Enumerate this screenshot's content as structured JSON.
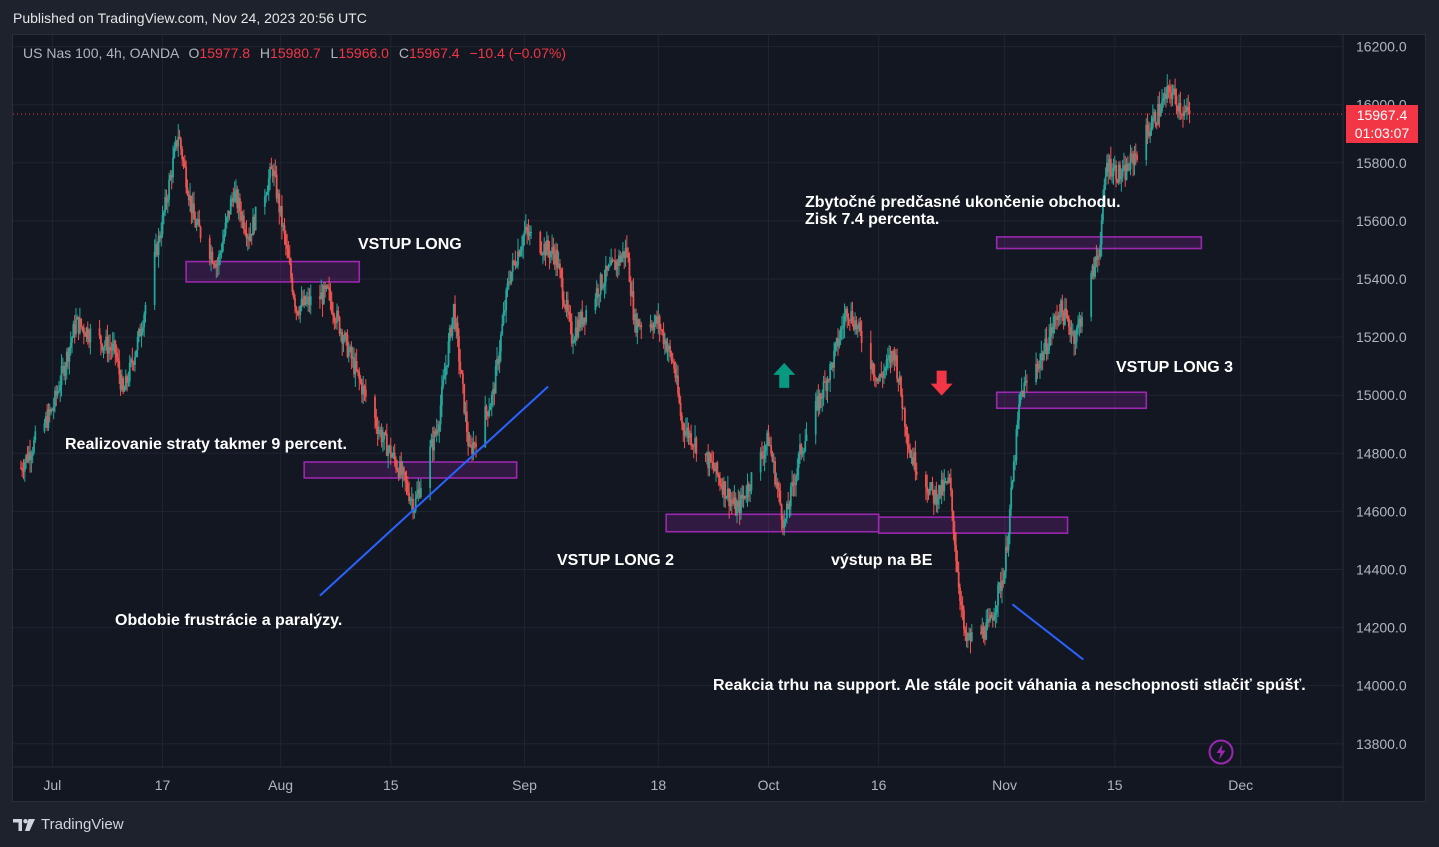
{
  "published": "Published on TradingView.com, Nov 24, 2023 20:56 UTC",
  "legend": {
    "symbol": "US Nas 100, 4h, OANDA",
    "o_label": "O",
    "o": "15977.8",
    "h_label": "H",
    "h": "15980.7",
    "l_label": "L",
    "l": "15966.0",
    "c_label": "C",
    "c": "15967.4",
    "change": "−10.4 (−0.07%)"
  },
  "price_tag": {
    "price": "15967.4",
    "countdown": "01:03:07"
  },
  "footer": {
    "brand": "TradingView"
  },
  "colors": {
    "up": "#26a69a",
    "down": "#ef5350",
    "zone": "#9c27b0",
    "line": "#2962ff",
    "price": "#f23645"
  },
  "annotations": {
    "vstup_long": "VSTUP LONG",
    "vstup_long_2": "VSTUP LONG 2",
    "vstup_long_3": "VSTUP LONG 3",
    "vystup_be": "výstup na BE",
    "strata": "Realizovanie straty takmer 9 percent.",
    "frustracia": "Obdobie frustrácie a paralýzy.",
    "zbytocne_1": "Zbytočné predčasné ukončenie obchodu.",
    "zbytocne_2": "Zisk 7.4 percenta.",
    "reakcia": "Reakcia trhu na support. Ale stále pocit váhania a neschopnosti stlačiť spúšť."
  },
  "chart_data": {
    "type": "candlestick",
    "symbol": "US Nas 100",
    "timeframe": "4h",
    "y_ticks": [
      13800,
      14000,
      14200,
      14400,
      14600,
      14800,
      15000,
      15200,
      15400,
      15600,
      15800,
      16000,
      16200
    ],
    "y_tick_labels": [
      "13800.0",
      "14000.0",
      "14200.0",
      "14400.0",
      "14600.0",
      "14800.0",
      "15000.0",
      "15200.0",
      "15400.0",
      "15600.0",
      "15800.0",
      "16000.0",
      "16200.0"
    ],
    "x_ticks": [
      "Jul",
      "17",
      "Aug",
      "15",
      "Sep",
      "18",
      "Oct",
      "16",
      "Nov",
      "15",
      "Dec"
    ],
    "x_tick_dates": [
      "2023-07-03",
      "2023-07-17",
      "2023-08-01",
      "2023-08-15",
      "2023-09-01",
      "2023-09-18",
      "2023-10-02",
      "2023-10-16",
      "2023-11-01",
      "2023-11-15",
      "2023-12-01"
    ],
    "ylim": [
      13720,
      16240
    ],
    "last_price": 15967.4,
    "price_path": [
      [
        "2023-06-29",
        14750
      ],
      [
        "2023-07-03",
        14950
      ],
      [
        "2023-07-06",
        15250
      ],
      [
        "2023-07-11",
        15150
      ],
      [
        "2023-07-12",
        15000
      ],
      [
        "2023-07-14",
        15200
      ],
      [
        "2023-07-17",
        15600
      ],
      [
        "2023-07-19",
        15900
      ],
      [
        "2023-07-21",
        15600
      ],
      [
        "2023-07-24",
        15450
      ],
      [
        "2023-07-26",
        15700
      ],
      [
        "2023-07-28",
        15550
      ],
      [
        "2023-07-31",
        15780
      ],
      [
        "2023-08-03",
        15300
      ],
      [
        "2023-08-07",
        15350
      ],
      [
        "2023-08-09",
        15200
      ],
      [
        "2023-08-11",
        15050
      ],
      [
        "2023-08-14",
        14850
      ],
      [
        "2023-08-16",
        14750
      ],
      [
        "2023-08-18",
        14620
      ],
      [
        "2023-08-21",
        14900
      ],
      [
        "2023-08-23",
        15300
      ],
      [
        "2023-08-25",
        14800
      ],
      [
        "2023-08-28",
        15000
      ],
      [
        "2023-08-30",
        15400
      ],
      [
        "2023-09-01",
        15560
      ],
      [
        "2023-09-05",
        15480
      ],
      [
        "2023-09-07",
        15200
      ],
      [
        "2023-09-11",
        15400
      ],
      [
        "2023-09-14",
        15500
      ],
      [
        "2023-09-15",
        15250
      ],
      [
        "2023-09-18",
        15250
      ],
      [
        "2023-09-20",
        15100
      ],
      [
        "2023-09-21",
        14900
      ],
      [
        "2023-09-25",
        14750
      ],
      [
        "2023-09-28",
        14600
      ],
      [
        "2023-10-02",
        14850
      ],
      [
        "2023-10-04",
        14550
      ],
      [
        "2023-10-06",
        14800
      ],
      [
        "2023-10-10",
        15100
      ],
      [
        "2023-10-12",
        15300
      ],
      [
        "2023-10-13",
        15250
      ],
      [
        "2023-10-16",
        15050
      ],
      [
        "2023-10-18",
        15150
      ],
      [
        "2023-10-20",
        14800
      ],
      [
        "2023-10-23",
        14650
      ],
      [
        "2023-10-25",
        14700
      ],
      [
        "2023-10-26",
        14400
      ],
      [
        "2023-10-27",
        14150
      ],
      [
        "2023-10-30",
        14200
      ],
      [
        "2023-11-01",
        14400
      ],
      [
        "2023-11-03",
        15000
      ],
      [
        "2023-11-06",
        15150
      ],
      [
        "2023-11-08",
        15300
      ],
      [
        "2023-11-10",
        15200
      ],
      [
        "2023-11-13",
        15500
      ],
      [
        "2023-11-14",
        15800
      ],
      [
        "2023-11-16",
        15750
      ],
      [
        "2023-11-20",
        15950
      ],
      [
        "2023-11-22",
        16050
      ],
      [
        "2023-11-24",
        15967
      ]
    ],
    "zones": [
      {
        "from": "2023-07-20",
        "to": "2023-08-11",
        "top": 15460,
        "bottom": 15390
      },
      {
        "from": "2023-08-04",
        "to": "2023-08-31",
        "top": 14770,
        "bottom": 14715
      },
      {
        "from": "2023-09-19",
        "to": "2023-10-16",
        "top": 14590,
        "bottom": 14530
      },
      {
        "from": "2023-10-16",
        "to": "2023-11-09",
        "top": 14580,
        "bottom": 14525
      },
      {
        "from": "2023-10-31",
        "to": "2023-11-19",
        "top": 15010,
        "bottom": 14955
      },
      {
        "from": "2023-10-31",
        "to": "2023-11-26",
        "top": 15545,
        "bottom": 15505
      }
    ],
    "lines": [
      {
        "from": [
          "2023-08-06",
          14310
        ],
        "to": [
          "2023-09-04",
          15030
        ]
      },
      {
        "from": [
          "2023-11-02",
          14280
        ],
        "to": [
          "2023-11-11",
          14090
        ]
      }
    ],
    "arrows": [
      {
        "dir": "up",
        "date": "2023-10-04",
        "price": 15070
      },
      {
        "dir": "down",
        "date": "2023-10-24",
        "price": 15040
      }
    ]
  }
}
